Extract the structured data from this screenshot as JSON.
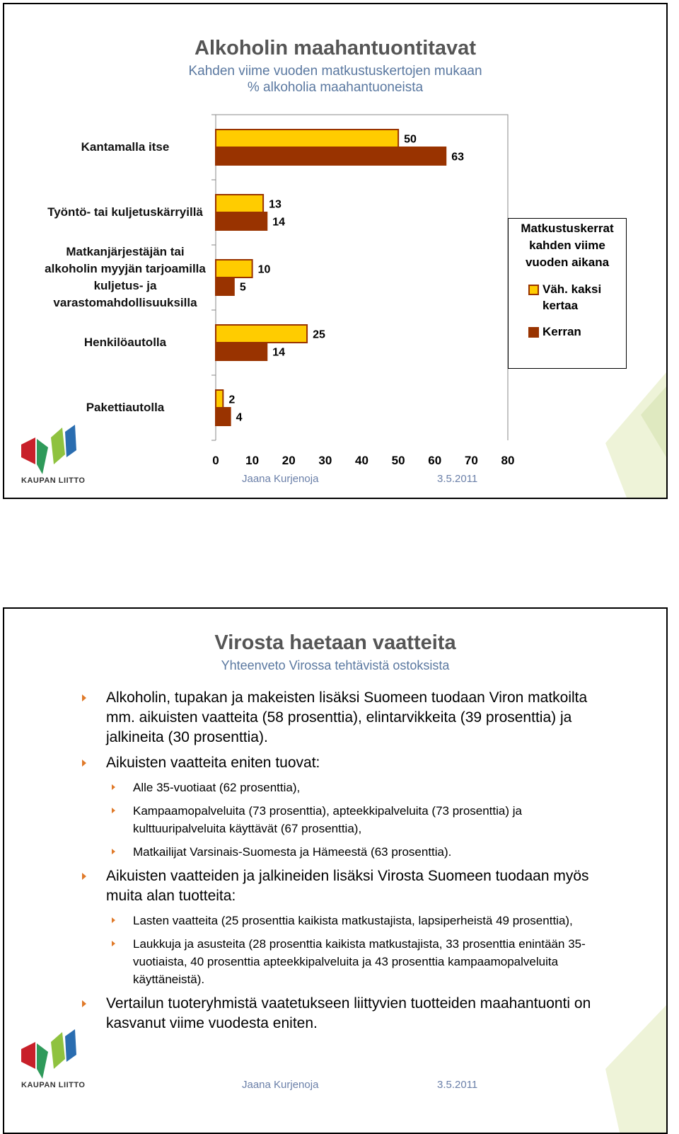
{
  "chart_data": {
    "type": "bar",
    "orientation": "horizontal",
    "title": "Alkoholin maahantuontitavat",
    "subtitle": [
      "Kahden viime vuoden matkustuskertojen mukaan",
      "% alkoholia maahantuoneista"
    ],
    "categories": [
      "Kantamalla itse",
      "Työntö- tai kuljetuskärryillä",
      "Matkanjärjestäjän tai alkoholin myyjän tarjoamilla kuljetus- ja varastomahdollisuuksilla",
      "Henkilöautolla",
      "Pakettiautolla"
    ],
    "series": [
      {
        "name": "Väh. kaksi kertaa",
        "color": "#ffcc00",
        "values": [
          50,
          13,
          10,
          25,
          2
        ]
      },
      {
        "name": "Kerran",
        "color": "#993300",
        "values": [
          63,
          14,
          5,
          14,
          4
        ]
      }
    ],
    "xlim": [
      0,
      80
    ],
    "xticks": [
      0,
      10,
      20,
      30,
      40,
      50,
      60,
      70,
      80
    ],
    "legend_title": "Matkustuskerrat kahden viime vuoden aikana",
    "legend": "right",
    "grid": false
  },
  "slide1_footer": {
    "author": "Jaana Kurjenoja",
    "date": "3.5.2011",
    "logo": "KAUPAN LIITTO"
  },
  "slide2": {
    "title": "Virosta haetaan vaatteita",
    "subtitle": "Yhteenveto Virossa tehtävistä ostoksista",
    "bullets": [
      {
        "text": "Alkoholin, tupakan ja makeisten lisäksi Suomeen tuodaan Viron matkoilta mm. aikuisten vaatteita (58 prosenttia), elintarvikkeita (39 prosenttia) ja jalkineita (30 prosenttia).",
        "sub": []
      },
      {
        "text": "Aikuisten vaatteita eniten tuovat:",
        "sub": [
          "Alle 35-vuotiaat (62 prosenttia),",
          "Kampaamopalveluita (73 prosenttia), apteekkipalveluita (73 prosenttia) ja kulttuuripalveluita käyttävät (67 prosenttia),",
          "Matkailijat Varsinais-Suomesta ja Hämeestä (63 prosenttia)."
        ]
      },
      {
        "text": "Aikuisten vaatteiden ja jalkineiden lisäksi Virosta Suomeen tuodaan myös muita alan tuotteita:",
        "sub": [
          "Lasten vaatteita (25 prosenttia kaikista matkustajista, lapsiperheistä 49 prosenttia),",
          "Laukkuja ja asusteita (28 prosenttia kaikista matkustajista, 33 prosenttia enintään 35-vuotiaista, 40 prosenttia apteekkipalveluita ja 43 prosenttia kampaamopalveluita käyttäneistä)."
        ]
      },
      {
        "text": "Vertailun tuoteryhmistä vaatetukseen liittyvien tuotteiden maahantuonti on kasvanut viime vuodesta eniten.",
        "sub": []
      }
    ],
    "footer": {
      "author": "Jaana Kurjenoja",
      "date": "3.5.2011",
      "logo": "KAUPAN LIITTO"
    }
  }
}
